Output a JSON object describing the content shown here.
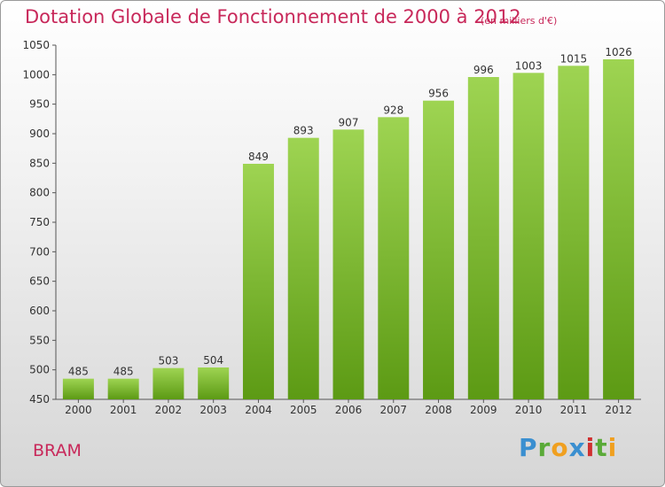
{
  "header": {
    "title": "Dotation Globale de Fonctionnement de 2000 à 2012",
    "unit": "(en milliers d'€)"
  },
  "footer": {
    "commune": "BRAM",
    "logo_text": "Proxiti"
  },
  "colors": {
    "title": "#c8285a",
    "bar_top": "#9ed452",
    "bar_bottom": "#5c9a14"
  },
  "chart_data": {
    "type": "bar",
    "title": "Dotation Globale de Fonctionnement de 2000 à 2012",
    "subtitle": "(en milliers d'€)",
    "categories": [
      "2000",
      "2001",
      "2002",
      "2003",
      "2004",
      "2005",
      "2006",
      "2007",
      "2008",
      "2009",
      "2010",
      "2011",
      "2012"
    ],
    "values": [
      485,
      485,
      503,
      504,
      849,
      893,
      907,
      928,
      956,
      996,
      1003,
      1015,
      1026
    ],
    "ylim": [
      450,
      1050
    ],
    "yticks": [
      450,
      500,
      550,
      600,
      650,
      700,
      750,
      800,
      850,
      900,
      950,
      1000,
      1050
    ],
    "xlabel": "",
    "ylabel": "",
    "grid": false,
    "legend": "none"
  }
}
